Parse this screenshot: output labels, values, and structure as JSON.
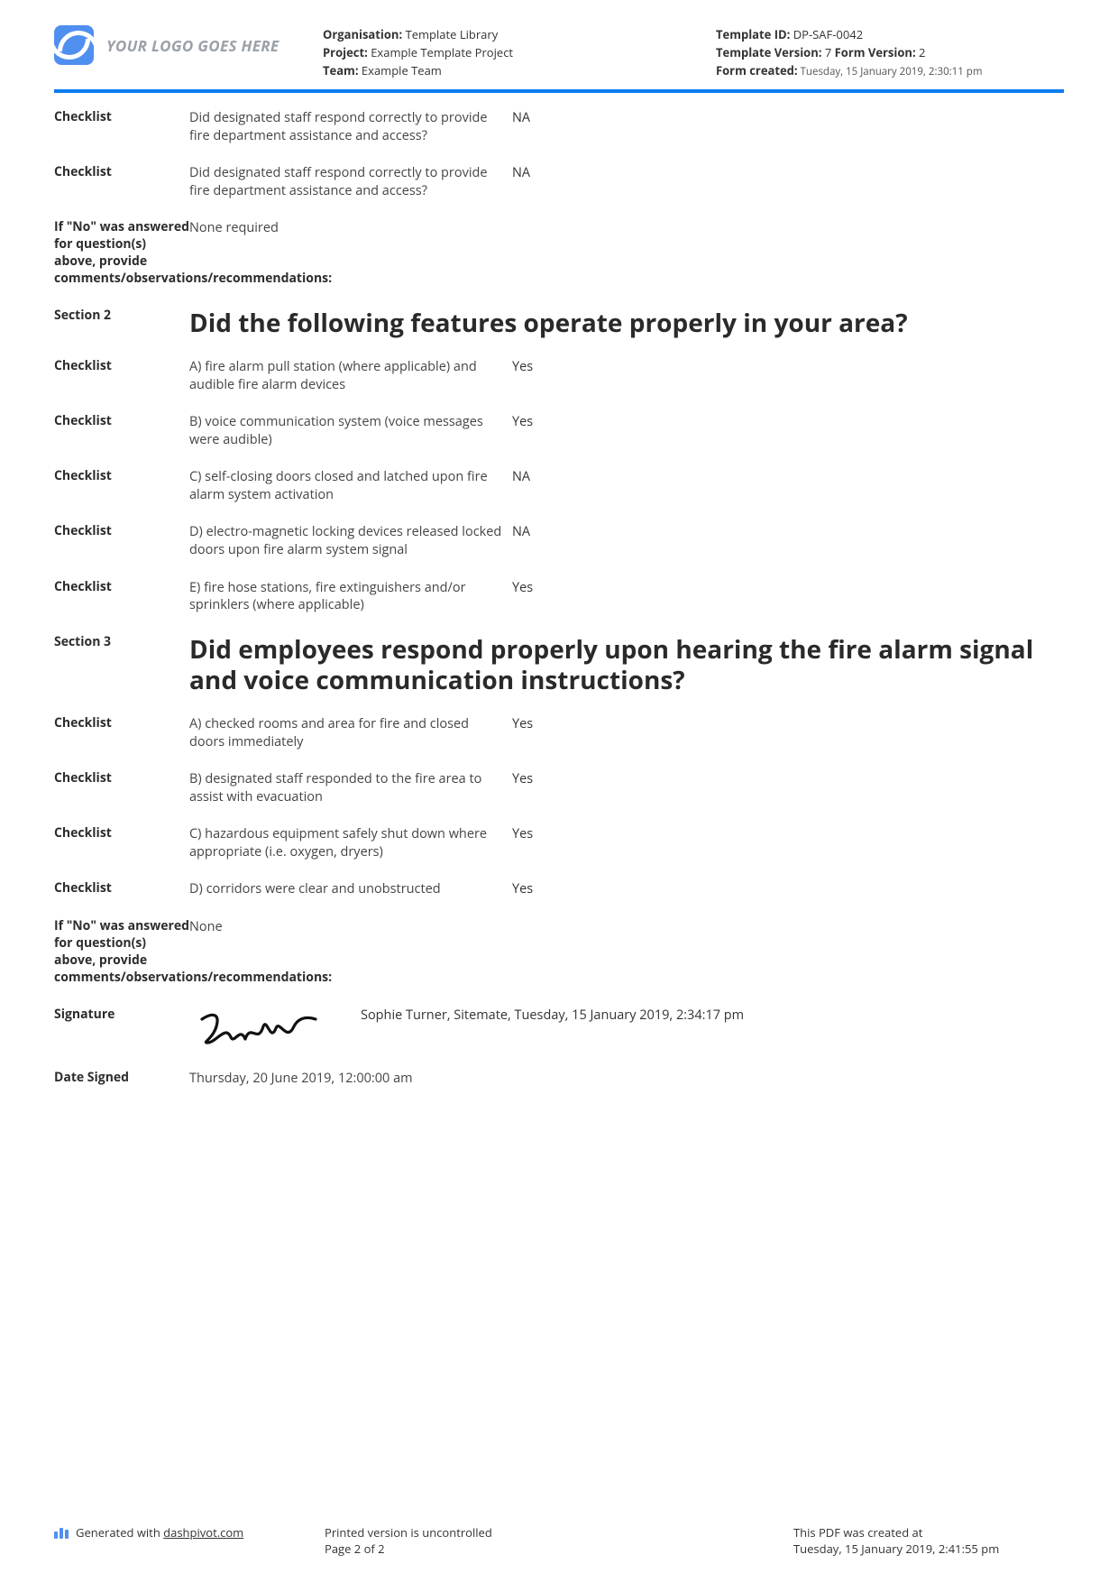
{
  "colors": {
    "accent": "#0a7df0",
    "logo": "#4f8ff0",
    "text": "#333333",
    "muted": "#9aa1a8",
    "background": "#ffffff"
  },
  "header": {
    "logo_placeholder": "YOUR LOGO GOES HERE",
    "left": {
      "org_label": "Organisation:",
      "org_value": " Template Library",
      "project_label": "Project:",
      "project_value": " Example Template Project",
      "team_label": "Team:",
      "team_value": " Example Team"
    },
    "right": {
      "tid_label": "Template ID:",
      "tid_value": " DP-SAF-0042",
      "tver_label": "Template Version:",
      "tver_value": " 7 ",
      "fver_label": "Form Version:",
      "fver_value": " 2",
      "created_label": "Form created:",
      "created_value": " Tuesday, 15 January 2019, 2:30:11 pm"
    }
  },
  "rows": [
    {
      "label": "Checklist",
      "question": "Did designated staff respond correctly to provide fire department assistance and access?",
      "answer": "NA"
    },
    {
      "label": "Checklist",
      "question": "Did designated staff respond correctly to provide fire department assistance and access?",
      "answer": "NA"
    },
    {
      "label": "If \"No\" was answered for question(s) above, provide comments/observations/recommendations:",
      "free": "None required"
    },
    {
      "label": "Section 2",
      "heading": "Did the following features operate properly in your area?"
    },
    {
      "label": "Checklist",
      "question": "A) fire alarm pull station (where applicable) and audible fire alarm devices",
      "answer": "Yes"
    },
    {
      "label": "Checklist",
      "question": "B) voice communication system (voice messages were audible)",
      "answer": "Yes"
    },
    {
      "label": "Checklist",
      "question": "C) self-closing doors closed and latched upon fire alarm system activation",
      "answer": "NA"
    },
    {
      "label": "Checklist",
      "question": "D) electro-magnetic locking devices released locked doors upon fire alarm system signal",
      "answer": "NA"
    },
    {
      "label": "Checklist",
      "question": "E) fire hose stations, fire extinguishers and/or sprinklers (where applicable)",
      "answer": "Yes"
    },
    {
      "label": "Section 3",
      "heading": "Did employees respond properly upon hearing the fire alarm signal and voice communication instructions?"
    },
    {
      "label": "Checklist",
      "question": "A) checked rooms and area for fire and closed doors immediately",
      "answer": "Yes"
    },
    {
      "label": "Checklist",
      "question": "B) designated staff responded to the fire area to assist with evacuation",
      "answer": "Yes"
    },
    {
      "label": "Checklist",
      "question": "C) hazardous equipment safely shut down where appropriate (i.e. oxygen, dryers)",
      "answer": "Yes"
    },
    {
      "label": "Checklist",
      "question": "D) corridors were clear and unobstructed",
      "answer": "Yes"
    },
    {
      "label": "If \"No\" was answered for question(s) above, provide comments/observations/recommendations:",
      "free": "None"
    }
  ],
  "signature": {
    "label": "Signature",
    "caption": "Sophie Turner, Sitemate, Tuesday, 15 January 2019, 2:34:17 pm"
  },
  "date_signed": {
    "label": "Date Signed",
    "value": "Thursday, 20 June 2019, 12:00:00 am"
  },
  "footer": {
    "generated_prefix": "Generated with ",
    "generated_link": "dashpivot.com",
    "printed_line1": "Printed version is uncontrolled",
    "printed_line2": "Page 2 of 2",
    "created_line1": "This PDF was created at",
    "created_line2": "Tuesday, 15 January 2019, 2:41:55 pm"
  }
}
